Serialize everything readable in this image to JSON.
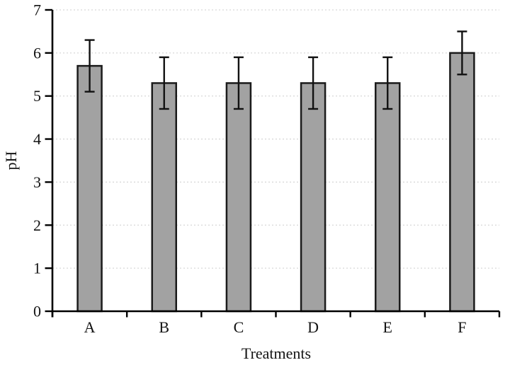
{
  "figure": {
    "kind": "scientific-bar-figure"
  },
  "chart_data": {
    "type": "bar",
    "title": "",
    "xlabel": "Treatments",
    "ylabel": "pH",
    "categories": [
      "A",
      "B",
      "C",
      "D",
      "E",
      "F"
    ],
    "values": [
      5.7,
      5.3,
      5.3,
      5.3,
      5.3,
      6.0
    ],
    "error_bars": [
      0.6,
      0.6,
      0.6,
      0.6,
      0.6,
      0.5
    ],
    "ylim": [
      0,
      7
    ],
    "ytick_step": 1,
    "ytick_labels": [
      "0",
      "1",
      "2",
      "3",
      "4",
      "5",
      "6",
      "7"
    ],
    "grid": "horizontal-dotted",
    "legend": "none",
    "colors": {
      "bar_fill": "#a2a2a2",
      "bar_stroke": "#1b1b1b",
      "error_bar": "#111111",
      "axis": "#000000",
      "gridline": "#d8d8d8",
      "text": "#131313"
    }
  }
}
